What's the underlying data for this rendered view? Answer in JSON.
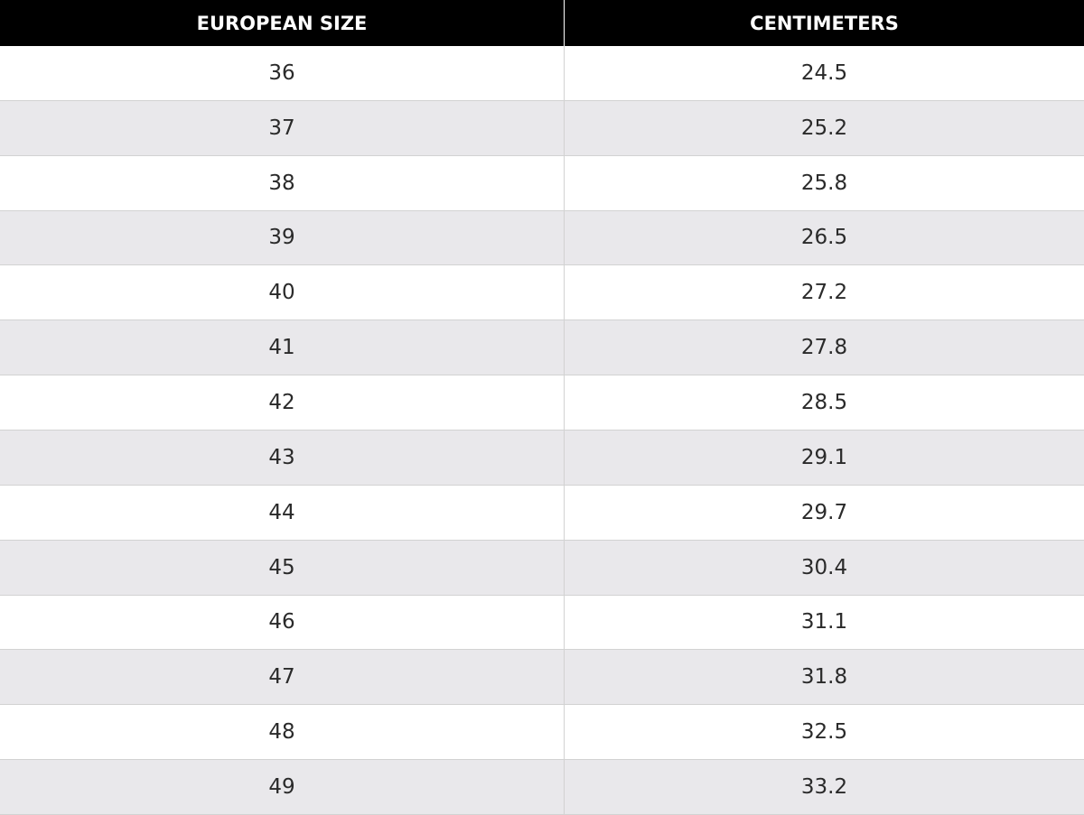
{
  "table": {
    "header": [
      "EUROPEAN SIZE",
      "CENTIMETERS"
    ],
    "rows": [
      [
        "36",
        "24.5"
      ],
      [
        "37",
        "25.2"
      ],
      [
        "38",
        "25.8"
      ],
      [
        "39",
        "26.5"
      ],
      [
        "40",
        "27.2"
      ],
      [
        "41",
        "27.8"
      ],
      [
        "42",
        "28.5"
      ],
      [
        "43",
        "29.1"
      ],
      [
        "44",
        "29.7"
      ],
      [
        "45",
        "30.4"
      ],
      [
        "46",
        "31.1"
      ],
      [
        "47",
        "31.8"
      ],
      [
        "48",
        "32.5"
      ],
      [
        "49",
        "33.2"
      ]
    ]
  }
}
